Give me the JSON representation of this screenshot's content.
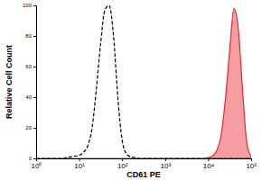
{
  "chart_data": {
    "type": "line",
    "x_label": "CD61 PE",
    "y_label": "Relative Cell Count",
    "log": "x",
    "grid": false,
    "xlim": [
      1,
      100000
    ],
    "ylim": [
      0,
      100
    ],
    "xticks": [
      {
        "value": 1,
        "label": "10⁰"
      },
      {
        "value": 10,
        "label": "10¹"
      },
      {
        "value": 100,
        "label": "10²"
      },
      {
        "value": 1000,
        "label": "10³"
      },
      {
        "value": 10000,
        "label": "10⁴"
      },
      {
        "value": 100000,
        "label": "10⁵"
      }
    ],
    "yticks": [
      0,
      20,
      40,
      60,
      80,
      100
    ],
    "x": [
      1,
      1.26,
      1.58,
      2,
      2.51,
      3.16,
      3.98,
      5.01,
      6.31,
      7.94,
      10,
      12.6,
      15.8,
      20,
      25.1,
      31.6,
      39.8,
      50.1,
      63.1,
      79.4,
      100,
      126,
      158,
      200,
      251,
      316,
      398,
      501,
      631,
      794,
      1000,
      1260,
      1580,
      2000,
      2510,
      3160,
      3980,
      5010,
      6310,
      7940,
      10000,
      12600,
      15800,
      20000,
      25100,
      31600,
      39800,
      50100,
      63100,
      79400,
      100000
    ],
    "series": [
      {
        "type": "line",
        "line_style": "dashed",
        "color": "#000000",
        "values": [
          0,
          0,
          0,
          0,
          0,
          0,
          0,
          0.5,
          1,
          1.5,
          2,
          4,
          8,
          20,
          45,
          75,
          97,
          100,
          80,
          40,
          12,
          3,
          1,
          0.5,
          0,
          0,
          0,
          0,
          0,
          0,
          0,
          0,
          0,
          0,
          0,
          0,
          0,
          0,
          0,
          0,
          0,
          0,
          0,
          0,
          0,
          0,
          0,
          0,
          0,
          0,
          0
        ]
      },
      {
        "type": "area",
        "color": "#e8262c",
        "values": [
          0,
          0,
          0,
          0,
          0,
          0,
          0,
          0,
          0,
          0,
          0,
          0,
          0,
          0,
          0,
          0,
          0,
          0,
          0,
          0,
          0,
          0,
          0,
          0,
          0,
          0,
          0,
          0,
          0,
          0,
          0,
          0,
          0,
          0,
          0,
          0,
          0,
          0,
          0,
          0,
          0.5,
          1.5,
          5,
          15,
          38,
          70,
          98,
          85,
          45,
          10,
          1
        ]
      }
    ]
  }
}
